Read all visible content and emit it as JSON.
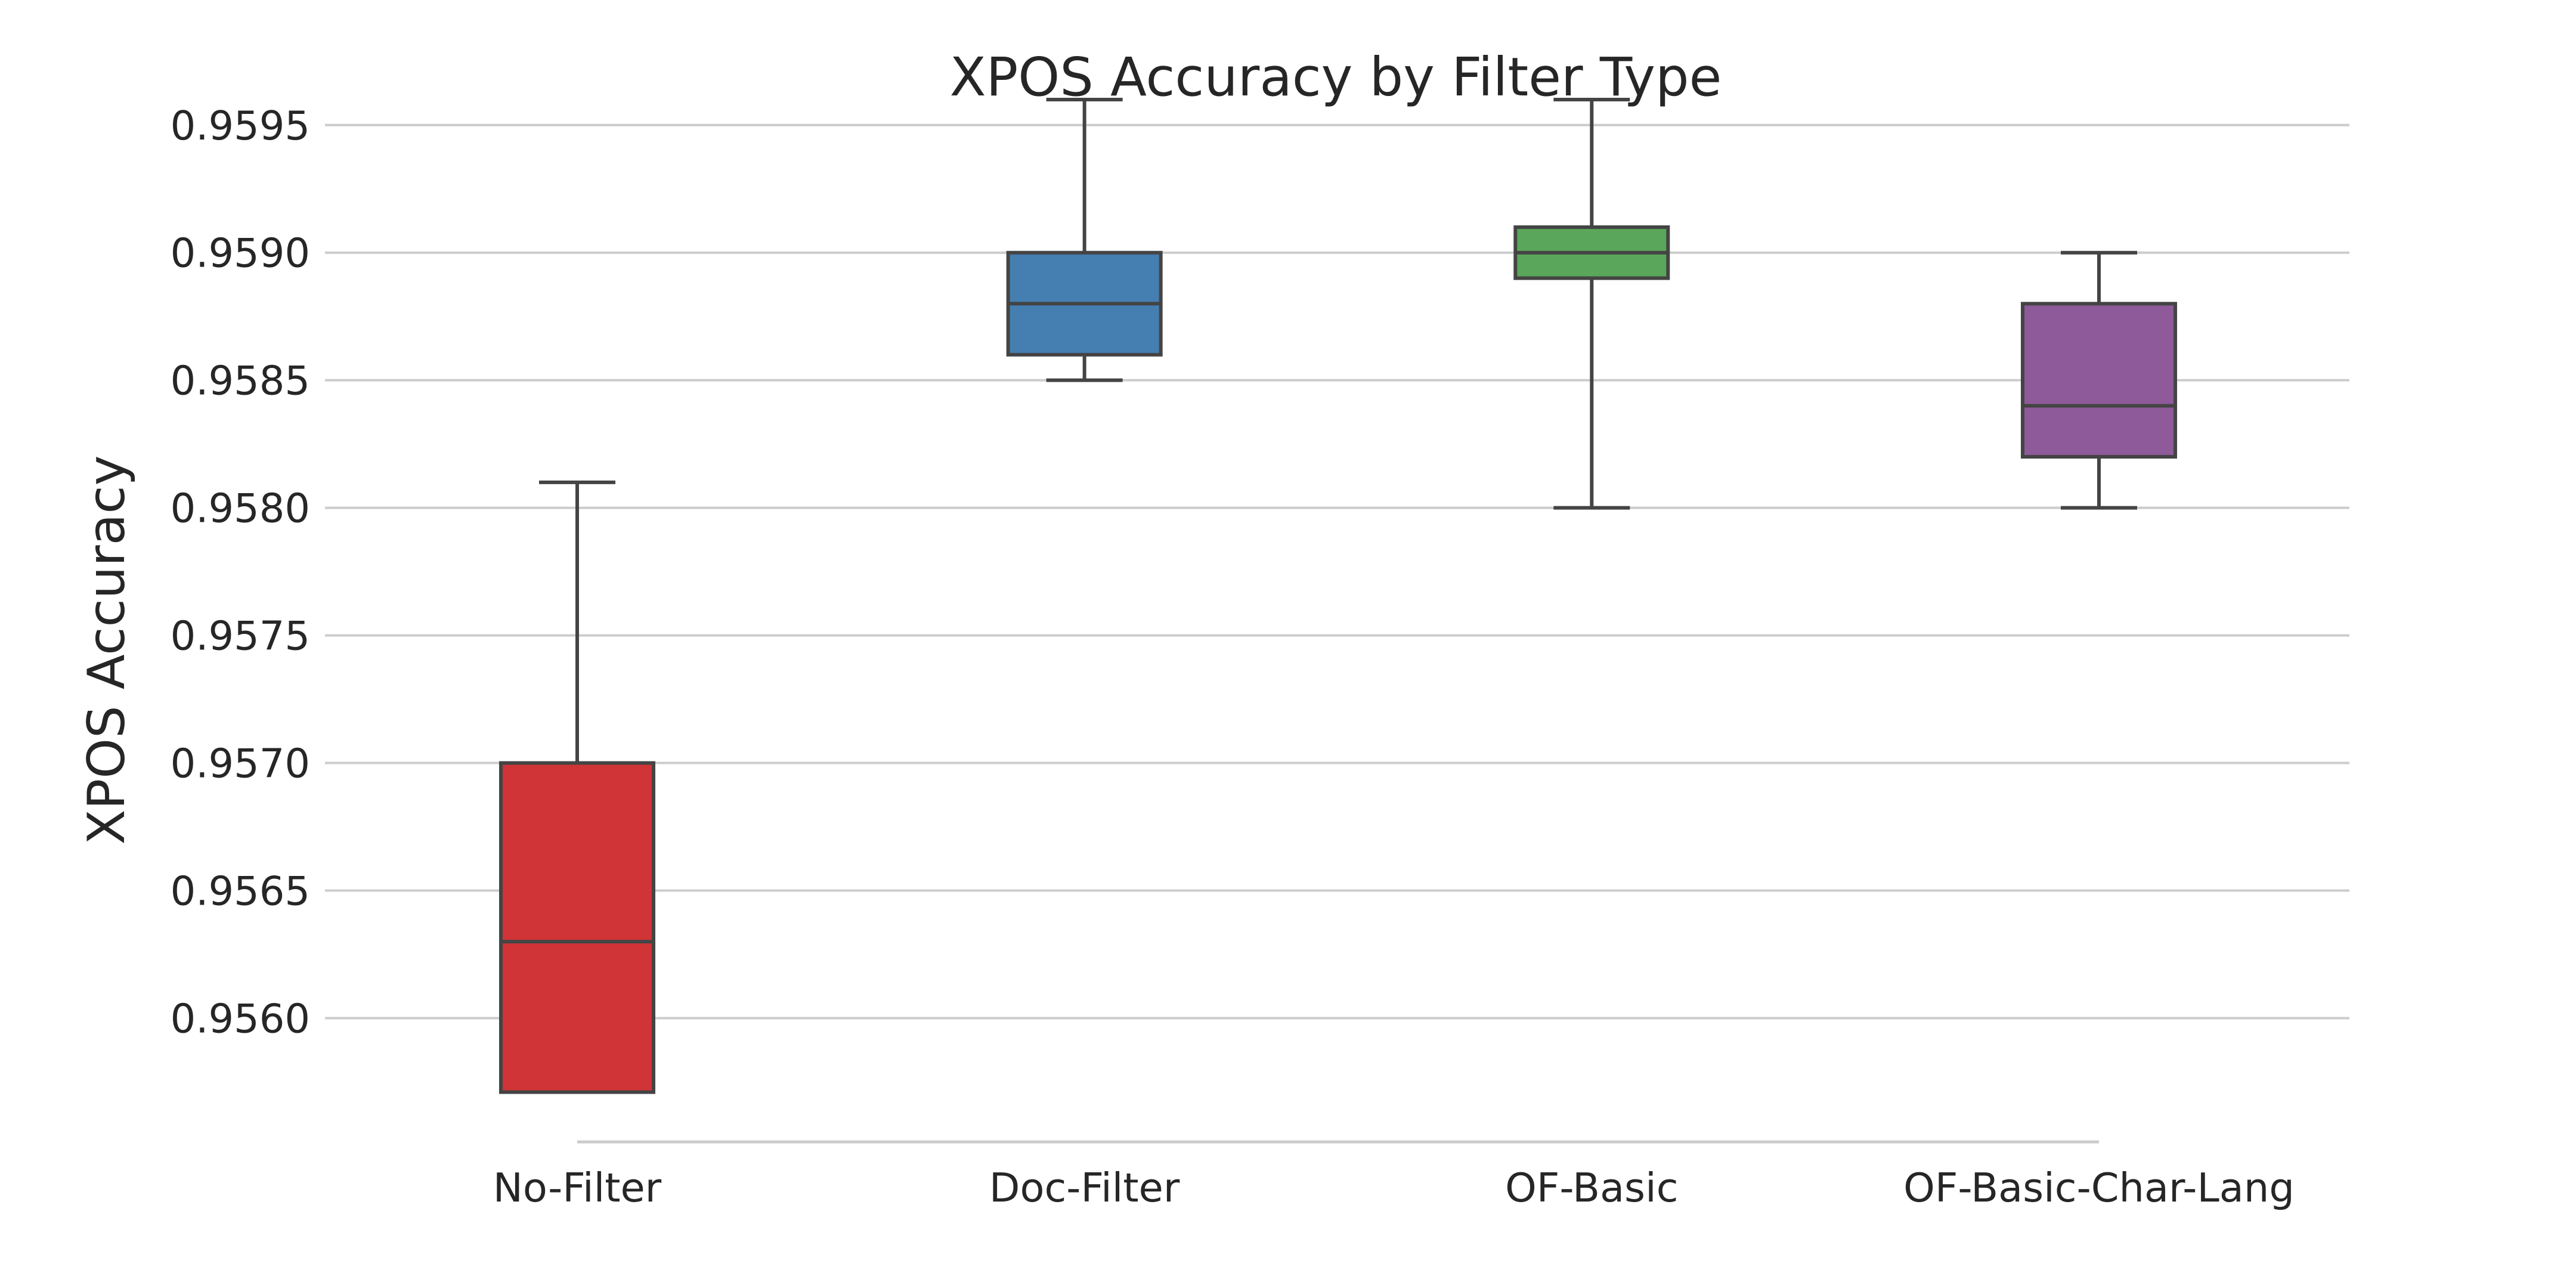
{
  "chart_data": {
    "type": "box",
    "title": "XPOS Accuracy by Filter Type",
    "xlabel": "",
    "ylabel": "XPOS Accuracy",
    "ylim": [
      0.95555,
      0.95985
    ],
    "yticks": [
      0.956,
      0.9565,
      0.957,
      0.9575,
      0.958,
      0.9585,
      0.959,
      0.9595
    ],
    "ytick_labels": [
      "0.9560",
      "0.9565",
      "0.9570",
      "0.9575",
      "0.9580",
      "0.9585",
      "0.9590",
      "0.9595"
    ],
    "grid": "horizontal",
    "categories": [
      "No-Filter",
      "Doc-Filter",
      "OF-Basic",
      "OF-Basic-Char-Lang"
    ],
    "boxes": [
      {
        "whisker_low": 0.95571,
        "q1": 0.95571,
        "median": 0.9563,
        "q3": 0.957,
        "whisker_high": 0.9581,
        "color": "#d03436"
      },
      {
        "whisker_low": 0.9585,
        "q1": 0.9586,
        "median": 0.9588,
        "q3": 0.959,
        "whisker_high": 0.9596,
        "color": "#457eb1"
      },
      {
        "whisker_low": 0.958,
        "q1": 0.9589,
        "median": 0.959,
        "q3": 0.9591,
        "whisker_high": 0.9596,
        "color": "#5aa65a"
      },
      {
        "whisker_low": 0.958,
        "q1": 0.9582,
        "median": 0.9584,
        "q3": 0.9588,
        "whisker_high": 0.959,
        "color": "#8e5a9a"
      }
    ]
  }
}
